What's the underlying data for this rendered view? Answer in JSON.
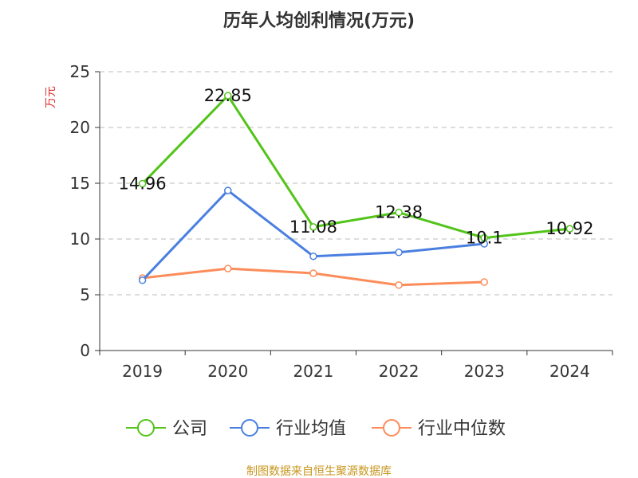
{
  "chart_data": {
    "type": "line",
    "title": "历年人均创利情况(万元)",
    "ylabel": "万元",
    "xlabel": "",
    "categories": [
      "2019",
      "2020",
      "2021",
      "2022",
      "2023",
      "2024"
    ],
    "ylim": [
      0,
      25
    ],
    "yticks": [
      0,
      5,
      10,
      15,
      20,
      25
    ],
    "grid": true,
    "legend_position": "bottom",
    "series": [
      {
        "name": "公司",
        "color": "#52c41a",
        "values": [
          14.96,
          22.85,
          11.08,
          12.38,
          10.1,
          10.92
        ],
        "labels": [
          "14.96",
          "22.85",
          "11.08",
          "12.38",
          "10.1",
          "10.92"
        ]
      },
      {
        "name": "行业均值",
        "color": "#4a7fe0",
        "values": [
          6.3,
          14.35,
          8.45,
          8.8,
          9.57,
          null
        ]
      },
      {
        "name": "行业中位数",
        "color": "#fc8c5a",
        "values": [
          6.5,
          7.35,
          6.93,
          5.87,
          6.14,
          null
        ]
      }
    ]
  },
  "footer": "制图数据来自恒生聚源数据库"
}
